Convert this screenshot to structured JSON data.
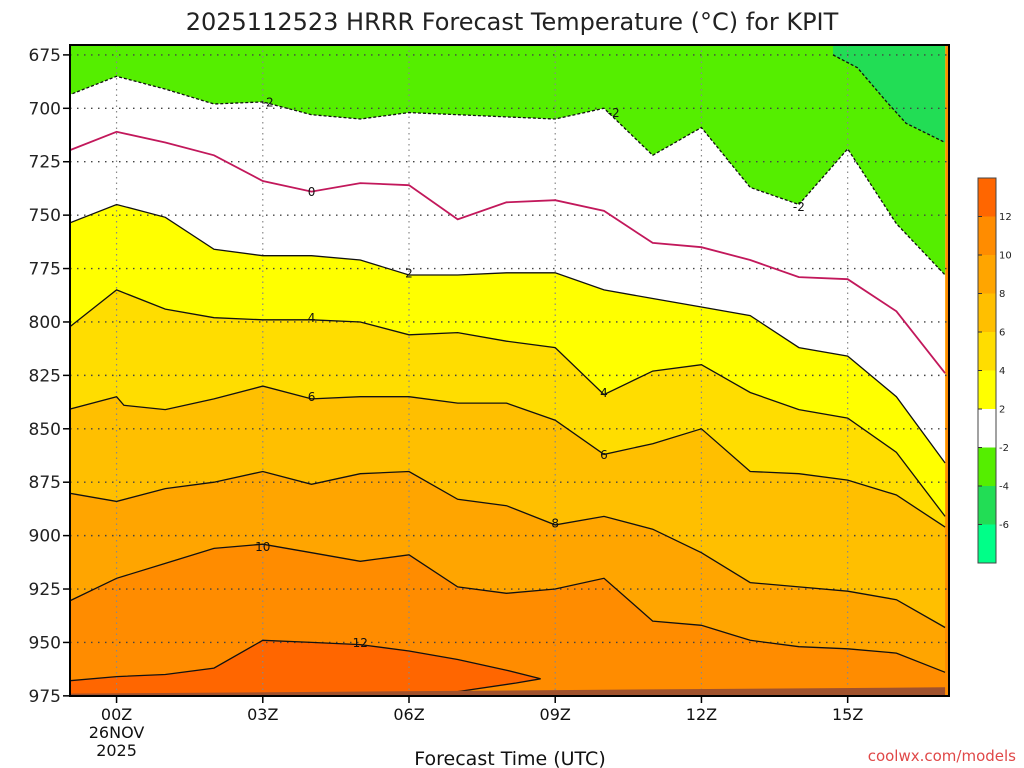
{
  "title": "2025112523 HRRR Forecast Temperature (°C) for KPIT",
  "xlabel": "Forecast Time (UTC)",
  "watermark": "coolwx.com/models",
  "chart_data": {
    "type": "heatmap",
    "title": "2025112523 HRRR Forecast Temperature (°C) for KPIT",
    "xlabel": "Forecast Time (UTC)",
    "ylabel": "",
    "x_unit": "hours from 00Z 26NOV2025",
    "xlim": [
      -1,
      17
    ],
    "ylim": [
      675,
      980
    ],
    "y_inverted": true,
    "y_ticks": [
      675,
      700,
      725,
      750,
      775,
      800,
      825,
      850,
      875,
      900,
      925,
      950,
      975
    ],
    "x_ticks": [
      {
        "x": 0,
        "lines": [
          "00Z",
          "26NOV",
          "2025"
        ]
      },
      {
        "x": 3,
        "lines": [
          "03Z"
        ]
      },
      {
        "x": 6,
        "lines": [
          "06Z"
        ]
      },
      {
        "x": 9,
        "lines": [
          "09Z"
        ]
      },
      {
        "x": 12,
        "lines": [
          "12Z"
        ]
      },
      {
        "x": 15,
        "lines": [
          "15Z"
        ]
      }
    ],
    "grid": true,
    "fill_levels": [
      {
        "range": [
          12,
          14
        ],
        "color": "#ff6600"
      },
      {
        "range": [
          10,
          12
        ],
        "color": "#ff8c00"
      },
      {
        "range": [
          8,
          10
        ],
        "color": "#ffa500"
      },
      {
        "range": [
          6,
          8
        ],
        "color": "#ffbf00"
      },
      {
        "range": [
          4,
          6
        ],
        "color": "#ffdd00"
      },
      {
        "range": [
          2,
          4
        ],
        "color": "#ffff00"
      },
      {
        "range": [
          -2,
          2
        ],
        "color": "#ffffff"
      },
      {
        "range": [
          -4,
          -2
        ],
        "color": "#55ee00"
      },
      {
        "range": [
          -6,
          -4
        ],
        "color": "#22dd55"
      },
      {
        "range": [
          -8,
          -6
        ],
        "color": "#00ff88"
      }
    ],
    "colorbar": {
      "colors": [
        "#ff6600",
        "#ff8c00",
        "#ffa500",
        "#ffbf00",
        "#ffdd00",
        "#ffff00",
        "#ffffff",
        "#55ee00",
        "#22dd55",
        "#00ff88"
      ],
      "labels": [
        "12",
        "10",
        "8",
        "6",
        "4",
        "2",
        "-2",
        "-4",
        "-6"
      ]
    },
    "ground": {
      "color": "#a0522d",
      "points": [
        [
          -1,
          980
        ],
        [
          -1,
          974
        ],
        [
          17,
          971
        ],
        [
          17,
          980
        ]
      ]
    },
    "isotherms": [
      {
        "value": -2,
        "style": "dashed",
        "color": "#111111",
        "points": [
          [
            -1,
            694
          ],
          [
            0,
            685
          ],
          [
            1,
            691
          ],
          [
            2,
            698
          ],
          [
            3,
            697
          ],
          [
            4,
            703
          ],
          [
            5,
            705
          ],
          [
            6,
            702
          ],
          [
            7,
            703
          ],
          [
            8,
            704
          ],
          [
            9,
            705
          ],
          [
            10,
            700
          ],
          [
            11,
            722
          ],
          [
            12,
            709
          ],
          [
            13,
            737
          ],
          [
            14,
            745
          ],
          [
            15,
            719
          ],
          [
            16,
            754
          ],
          [
            17,
            778
          ]
        ],
        "labels": [
          {
            "x": 3.1,
            "y": 697,
            "text": "-2"
          },
          {
            "x": 10.2,
            "y": 702,
            "text": "-2"
          },
          {
            "x": 14,
            "y": 746,
            "text": "-2"
          }
        ]
      },
      {
        "value": -2,
        "style": "dashed",
        "color": "#111111",
        "points": [
          [
            14.7,
            675
          ],
          [
            15.2,
            681
          ],
          [
            15.8,
            697
          ],
          [
            16.2,
            707
          ],
          [
            17,
            716
          ]
        ],
        "labels": []
      },
      {
        "value": 0,
        "style": "solid",
        "color": "#c2185b",
        "points": [
          [
            -1,
            720
          ],
          [
            0,
            711
          ],
          [
            1,
            716
          ],
          [
            2,
            722
          ],
          [
            3,
            734
          ],
          [
            4,
            739
          ],
          [
            5,
            735
          ],
          [
            6,
            736
          ],
          [
            7,
            752
          ],
          [
            8,
            744
          ],
          [
            9,
            743
          ],
          [
            10,
            748
          ],
          [
            11,
            763
          ],
          [
            12,
            765
          ],
          [
            13,
            771
          ],
          [
            14,
            779
          ],
          [
            15,
            780
          ],
          [
            16,
            795
          ],
          [
            17,
            824
          ]
        ],
        "labels": [
          {
            "x": 4,
            "y": 739,
            "text": "0"
          }
        ]
      },
      {
        "value": 2,
        "style": "solid",
        "color": "#111111",
        "points": [
          [
            -1,
            754
          ],
          [
            0,
            745
          ],
          [
            1,
            751
          ],
          [
            2,
            766
          ],
          [
            3,
            769
          ],
          [
            4,
            769
          ],
          [
            5,
            771
          ],
          [
            6,
            778
          ],
          [
            7,
            778
          ],
          [
            8,
            777
          ],
          [
            9,
            777
          ],
          [
            10,
            785
          ],
          [
            11,
            789
          ],
          [
            12,
            793
          ],
          [
            13,
            797
          ],
          [
            14,
            812
          ],
          [
            15,
            816
          ],
          [
            16,
            835
          ],
          [
            17,
            866
          ]
        ],
        "labels": [
          {
            "x": 6,
            "y": 777,
            "text": "2"
          }
        ]
      },
      {
        "value": 4,
        "style": "solid",
        "color": "#111111",
        "points": [
          [
            -1,
            803
          ],
          [
            0,
            785
          ],
          [
            1,
            794
          ],
          [
            2,
            798
          ],
          [
            3,
            799
          ],
          [
            4,
            799
          ],
          [
            5,
            800
          ],
          [
            6,
            806
          ],
          [
            7,
            805
          ],
          [
            8,
            809
          ],
          [
            9,
            812
          ],
          [
            10,
            834
          ],
          [
            11,
            823
          ],
          [
            12,
            820
          ],
          [
            13,
            833
          ],
          [
            14,
            841
          ],
          [
            15,
            845
          ],
          [
            16,
            861
          ],
          [
            17,
            891
          ]
        ],
        "labels": [
          {
            "x": 4,
            "y": 798,
            "text": "4"
          },
          {
            "x": 10,
            "y": 833,
            "text": "4"
          }
        ]
      },
      {
        "value": 6,
        "style": "solid",
        "color": "#111111",
        "points": [
          [
            -1,
            841
          ],
          [
            0,
            835
          ],
          [
            0.15,
            839
          ],
          [
            1,
            841
          ],
          [
            2,
            836
          ],
          [
            3,
            830
          ],
          [
            4,
            836
          ],
          [
            5,
            835
          ],
          [
            6,
            835
          ],
          [
            7,
            838
          ],
          [
            8,
            838
          ],
          [
            9,
            846
          ],
          [
            10,
            862
          ],
          [
            11,
            857
          ],
          [
            12,
            850
          ],
          [
            13,
            870
          ],
          [
            14,
            871
          ],
          [
            15,
            874
          ],
          [
            16,
            881
          ],
          [
            17,
            896
          ]
        ],
        "labels": [
          {
            "x": 4,
            "y": 835,
            "text": "6"
          },
          {
            "x": 10,
            "y": 862,
            "text": "6"
          }
        ]
      },
      {
        "value": 8,
        "style": "solid",
        "color": "#111111",
        "points": [
          [
            -1,
            880
          ],
          [
            0,
            884
          ],
          [
            1,
            878
          ],
          [
            2,
            875
          ],
          [
            3,
            870
          ],
          [
            4,
            876
          ],
          [
            5,
            871
          ],
          [
            6,
            870
          ],
          [
            7,
            883
          ],
          [
            8,
            886
          ],
          [
            9,
            895
          ],
          [
            10,
            891
          ],
          [
            11,
            897
          ],
          [
            12,
            908
          ],
          [
            13,
            922
          ],
          [
            14,
            924
          ],
          [
            15,
            926
          ],
          [
            16,
            930
          ],
          [
            17,
            943
          ]
        ],
        "labels": [
          {
            "x": 9,
            "y": 894,
            "text": "8"
          }
        ]
      },
      {
        "value": 10,
        "style": "solid",
        "color": "#111111",
        "points": [
          [
            -1,
            931
          ],
          [
            0,
            920
          ],
          [
            1,
            913
          ],
          [
            2,
            906
          ],
          [
            3,
            904
          ],
          [
            4,
            908
          ],
          [
            5,
            912
          ],
          [
            6,
            909
          ],
          [
            7,
            924
          ],
          [
            8,
            927
          ],
          [
            9,
            925
          ],
          [
            10,
            920
          ],
          [
            11,
            940
          ],
          [
            12,
            942
          ],
          [
            13,
            949
          ],
          [
            14,
            952
          ],
          [
            15,
            953
          ],
          [
            16,
            955
          ],
          [
            17,
            964
          ]
        ],
        "labels": [
          {
            "x": 3,
            "y": 905,
            "text": "10"
          }
        ]
      },
      {
        "value": 12,
        "style": "solid",
        "color": "#111111",
        "points": [
          [
            -1,
            968
          ],
          [
            0,
            966
          ],
          [
            1,
            965
          ],
          [
            2,
            962
          ],
          [
            3,
            949
          ],
          [
            4,
            950
          ],
          [
            5,
            951
          ],
          [
            6,
            954
          ],
          [
            7,
            958
          ],
          [
            8,
            963
          ],
          [
            8.7,
            967
          ],
          [
            8.2,
            969
          ],
          [
            7,
            973
          ],
          [
            6,
            974
          ],
          [
            5,
            975
          ],
          [
            4,
            975
          ],
          [
            3,
            975
          ],
          [
            2,
            975
          ],
          [
            1,
            975
          ],
          [
            0,
            975
          ],
          [
            -1,
            975
          ]
        ],
        "labels": [
          {
            "x": 5,
            "y": 950,
            "text": "12"
          }
        ]
      }
    ]
  }
}
